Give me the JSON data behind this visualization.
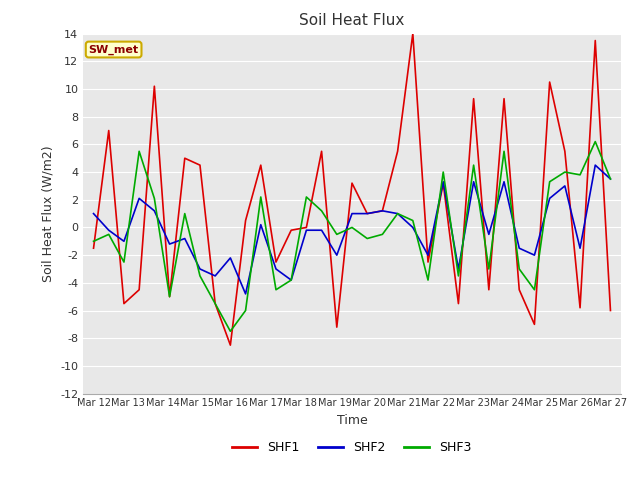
{
  "title": "Soil Heat Flux",
  "ylabel": "Soil Heat Flux (W/m2)",
  "xlabel": "Time",
  "ylim": [
    -12,
    14
  ],
  "plot_bg": "#e8e8e8",
  "station_label": "SW_met",
  "x_tick_labels": [
    "Mar 12",
    "Mar 13",
    "Mar 14",
    "Mar 15",
    "Mar 16",
    "Mar 17",
    "Mar 18",
    "Mar 19",
    "Mar 20",
    "Mar 21",
    "Mar 22",
    "Mar 23",
    "Mar 24",
    "Mar 25",
    "Mar 26",
    "Mar 27"
  ],
  "SHF1": [
    -1.5,
    7.0,
    -5.5,
    -4.5,
    10.2,
    -5.0,
    5.0,
    4.5,
    -5.5,
    -8.5,
    0.5,
    4.5,
    -2.5,
    -0.2,
    0.0,
    5.5,
    -7.2,
    3.2,
    1.0,
    1.2,
    5.5,
    14.0,
    -2.5,
    3.2,
    -5.5,
    9.3,
    -4.5,
    9.3,
    -4.5,
    -7.0,
    10.5,
    5.5,
    -5.8,
    13.5,
    -6.0
  ],
  "SHF2": [
    1.0,
    -0.2,
    -1.0,
    2.1,
    1.2,
    -1.2,
    -0.8,
    -3.0,
    -3.5,
    -2.2,
    -4.8,
    0.2,
    -3.0,
    -3.8,
    -0.2,
    -0.2,
    -2.0,
    1.0,
    1.0,
    1.2,
    1.0,
    0.0,
    -2.0,
    3.3,
    -3.0,
    3.3,
    -0.5,
    3.3,
    -1.5,
    -2.0,
    2.1,
    3.0,
    -1.5,
    4.5,
    3.5
  ],
  "SHF3": [
    -1.0,
    -0.5,
    -2.5,
    5.5,
    2.1,
    -5.0,
    1.0,
    -3.5,
    -5.5,
    -7.5,
    -6.0,
    2.2,
    -4.5,
    -3.8,
    2.2,
    1.2,
    -0.5,
    0.0,
    -0.8,
    -0.5,
    1.0,
    0.5,
    -3.8,
    4.0,
    -3.5,
    4.5,
    -3.0,
    5.5,
    -3.0,
    -4.5,
    3.3,
    4.0,
    3.8,
    6.2,
    3.5
  ],
  "line_colors": {
    "SHF1": "#dd0000",
    "SHF2": "#0000cc",
    "SHF3": "#00aa00"
  },
  "legend_entries": [
    "SHF1",
    "SHF2",
    "SHF3"
  ]
}
